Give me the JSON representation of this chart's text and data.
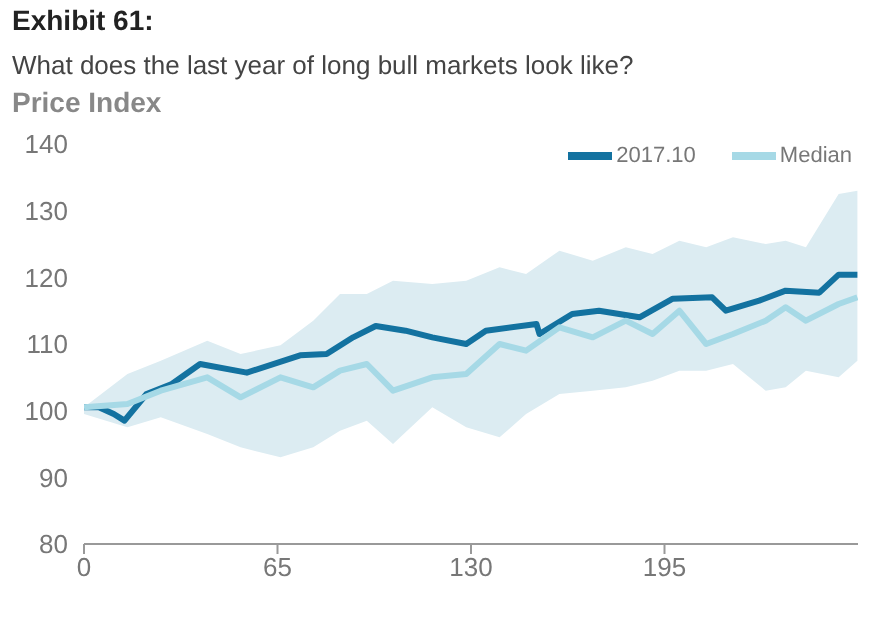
{
  "chart_data": {
    "type": "line",
    "title": "Exhibit 61:",
    "subtitle": "What does the last year of long bull markets look like?",
    "ylabel": "Price Index",
    "xlim": [
      0,
      260
    ],
    "xticks": [
      0,
      65,
      130,
      195
    ],
    "ylim": [
      80,
      140
    ],
    "yticks": [
      80,
      90,
      100,
      110,
      120,
      130,
      140
    ],
    "grid": false,
    "legend": "top right",
    "marker": "none",
    "line_style": "solid",
    "series": [
      {
        "name": "2017.10",
        "color": "#1372a0",
        "x": [
          0,
          5,
          10,
          13.6,
          21,
          29.5,
          39,
          54.7,
          72.6,
          81.5,
          90.4,
          98,
          108,
          117,
          128.4,
          135,
          152,
          153,
          164,
          173,
          186.6,
          197.8,
          211,
          215.6,
          226.8,
          235.7,
          247,
          253.5,
          259.8
        ],
        "values": [
          100.5,
          100.5,
          99.5,
          98.5,
          102.5,
          104,
          107,
          105.7,
          108.3,
          108.5,
          111,
          112.7,
          112,
          111,
          110,
          112,
          113,
          111.5,
          114.5,
          115,
          114,
          116.8,
          117,
          115,
          116.5,
          118,
          117.7,
          120.4,
          120.4
        ]
      },
      {
        "name": "Median",
        "color": "#a6d9e6",
        "x": [
          0,
          14.6,
          25.8,
          41.4,
          52.6,
          66,
          77,
          86,
          95,
          103.8,
          117,
          128.4,
          139.6,
          148.5,
          159.7,
          170.9,
          182,
          191,
          200,
          209,
          218,
          229,
          235.7,
          242.5,
          253.5,
          259.8
        ],
        "values": [
          100.5,
          101,
          103,
          105,
          102,
          105,
          103.5,
          106,
          107,
          103,
          105,
          105.5,
          110,
          109,
          112.5,
          111,
          113.5,
          111.5,
          115,
          110,
          111.5,
          113.5,
          115.5,
          113.5,
          116,
          117
        ],
        "lower": [
          99.5,
          97.5,
          99,
          96.5,
          94.5,
          93,
          94.5,
          97,
          98.5,
          95,
          100.5,
          97.5,
          96,
          99.5,
          102.5,
          103,
          103.5,
          104.5,
          106,
          106,
          107,
          103,
          103.5,
          106,
          105,
          107.5
        ],
        "upper": [
          100.5,
          105.5,
          107.5,
          110.5,
          108.5,
          109.8,
          113.5,
          117.5,
          117.5,
          119.5,
          119,
          119.5,
          121.5,
          120.5,
          124,
          122.5,
          124.5,
          123.5,
          125.5,
          124.5,
          126,
          125,
          125.5,
          124.5,
          132.5,
          133
        ]
      }
    ]
  }
}
